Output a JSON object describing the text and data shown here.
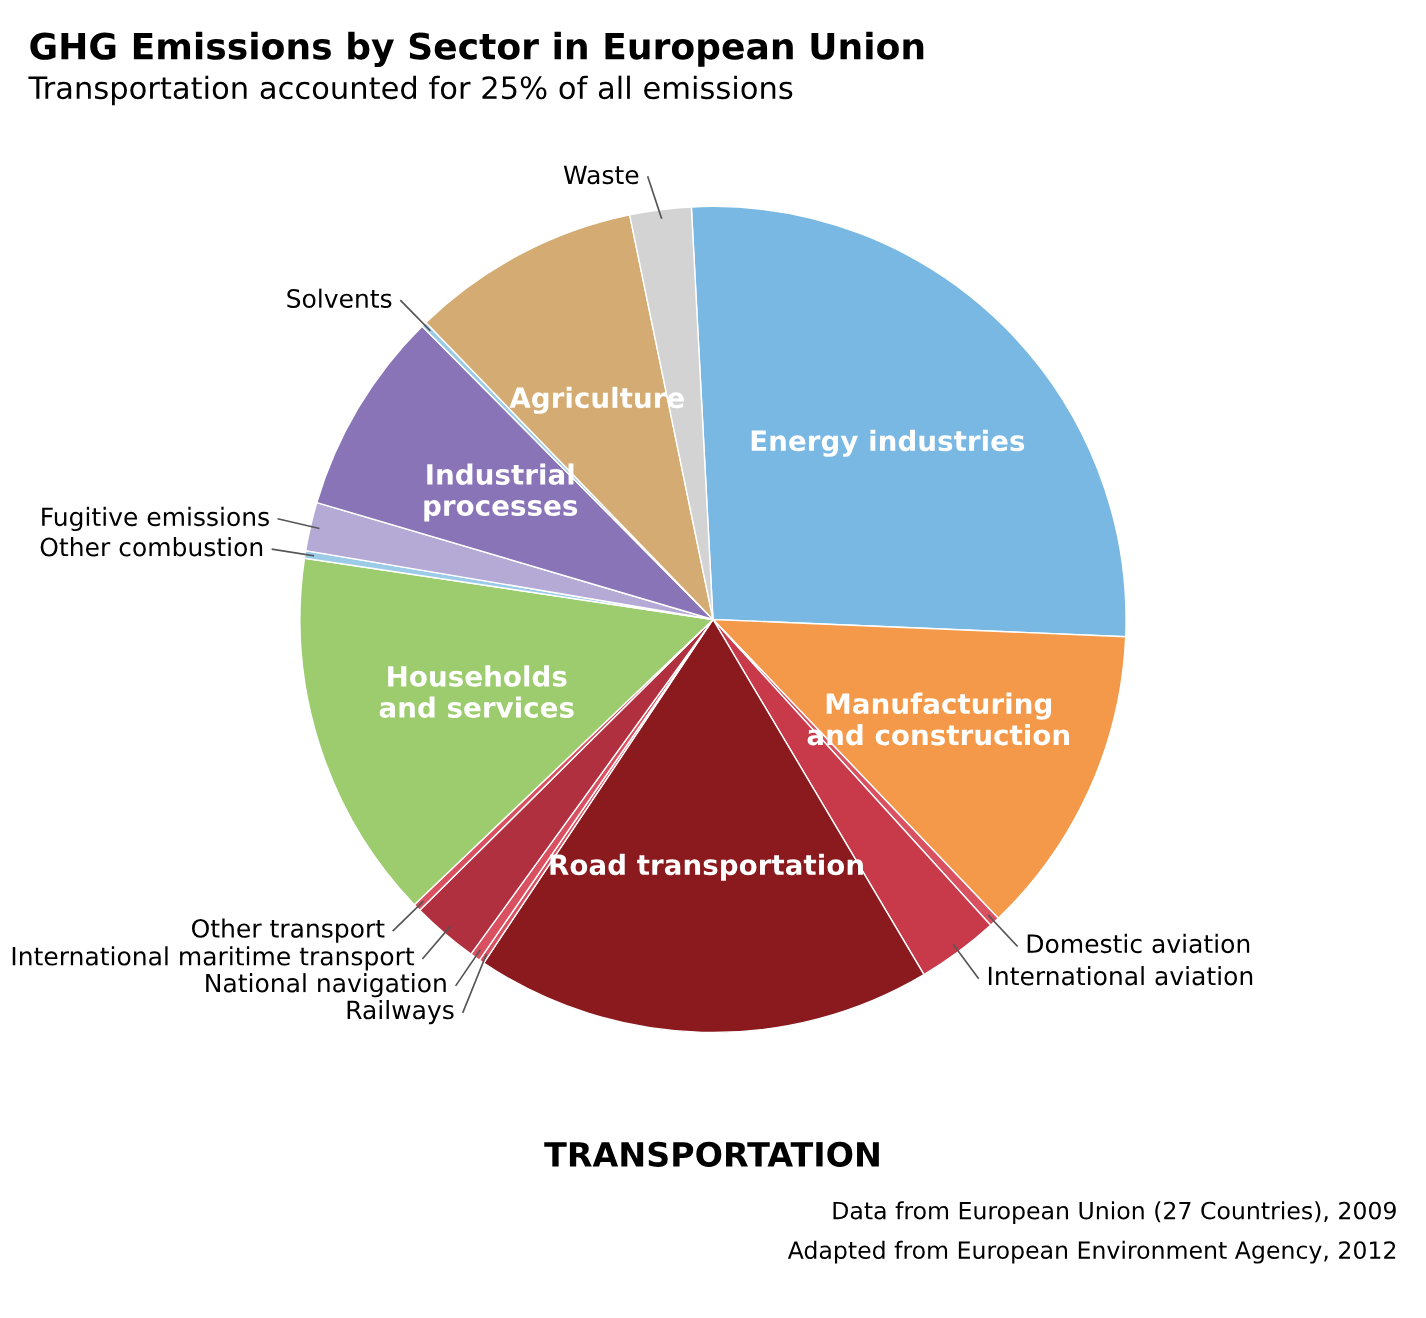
{
  "chart_data": {
    "type": "pie",
    "title": "GHG Emissions by Sector in European Union",
    "subtitle": "Transportation accounted for 25% of all emissions",
    "categories": [
      "Energy industries",
      "Manufacturing\nand construction",
      "Domestic aviation",
      "International aviation",
      "Road transportation",
      "Railways",
      "National navigation",
      "International maritime transport",
      "Other transport",
      "Households\nand services",
      "Other combustion",
      "Fugitive emissions",
      "Industrial\nprocesses",
      "Solvents",
      "Agriculture",
      "Waste"
    ],
    "values": [
      26.5,
      12.2,
      0.4,
      3.2,
      17.9,
      0.2,
      0.4,
      2.6,
      0.3,
      14.5,
      0.3,
      1.9,
      8.0,
      0.2,
      9.0,
      2.4
    ],
    "colors": [
      "#7ab8e4",
      "#f4994a",
      "#d95060",
      "#c8394a",
      "#8b1a1f",
      "#d95060",
      "#d95060",
      "#b0303f",
      "#d95060",
      "#9dcc6e",
      "#9ccbe8",
      "#b5a9d6",
      "#8a74b8",
      "#9ccbe8",
      "#d4ac73",
      "#d3d3d3"
    ],
    "annotations": [
      "TRANSPORTATION",
      "Data from European Union (27 Countries), 2009",
      "Adapted from European Environment Agency, 2012"
    ]
  }
}
